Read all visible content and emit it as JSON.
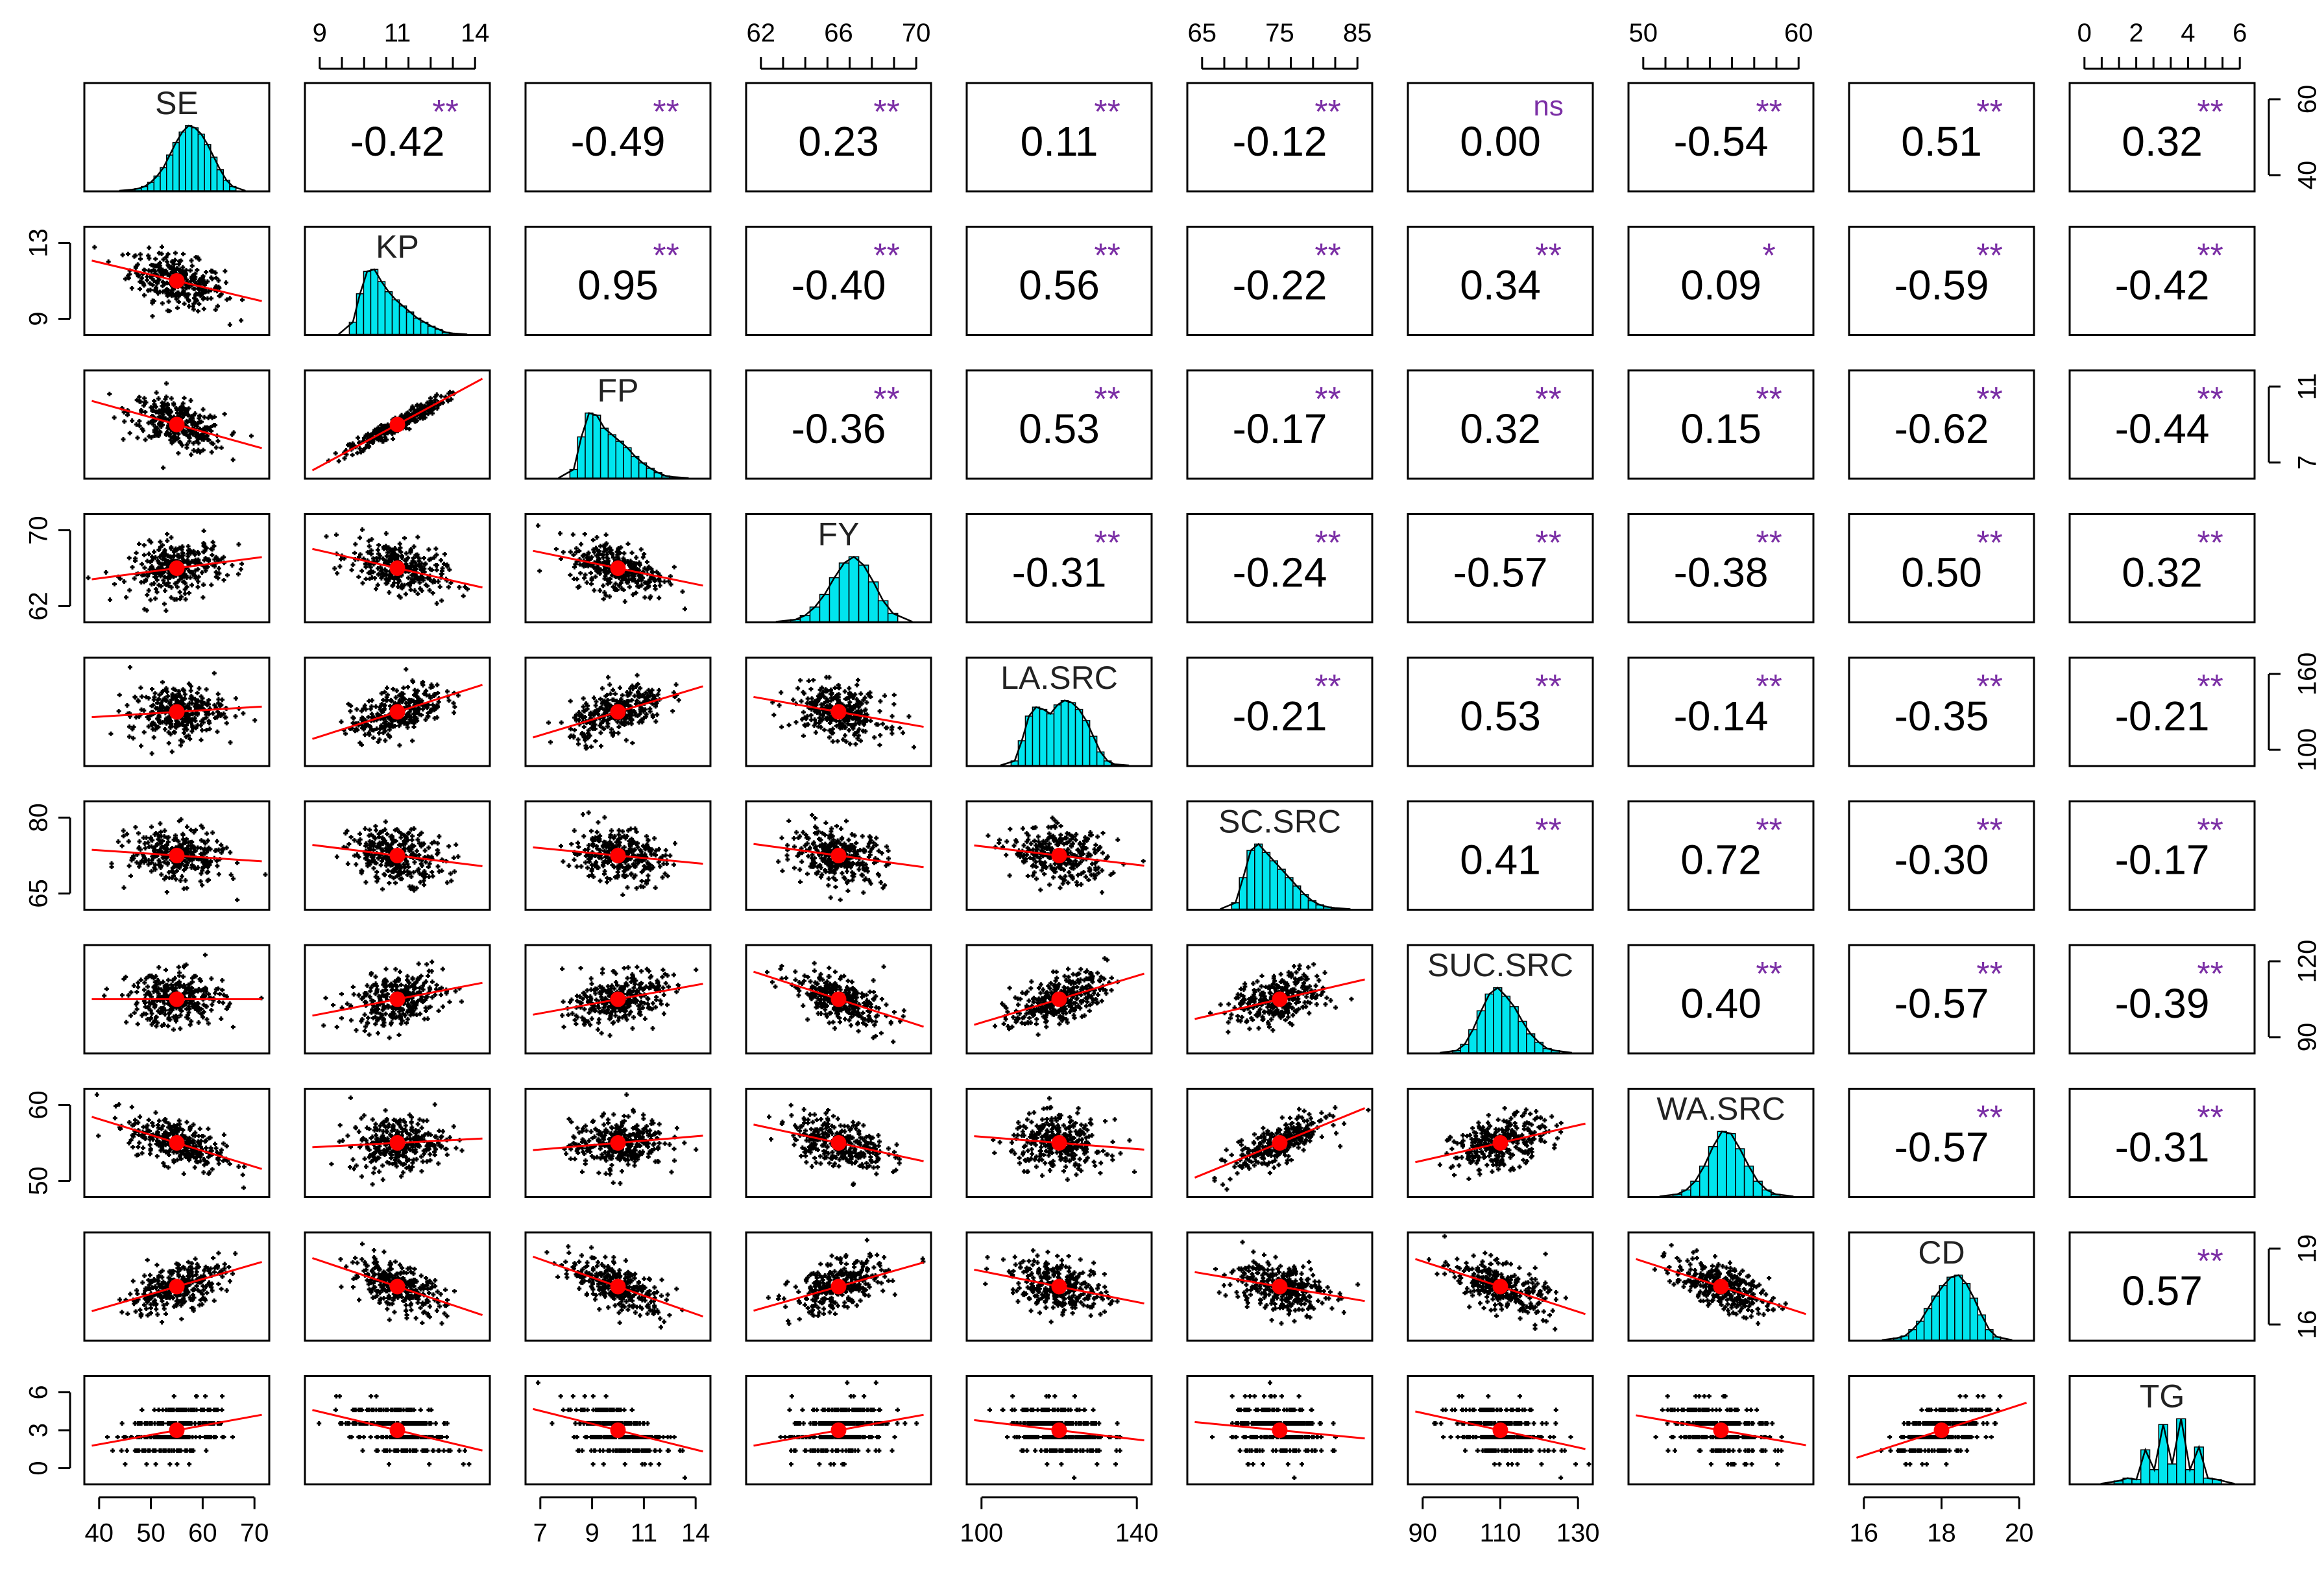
{
  "chart_data": {
    "type": "scatter",
    "title": "",
    "variables": [
      {
        "name": "SE",
        "range": [
          40,
          72
        ],
        "ticks": [
          40,
          50,
          60,
          70
        ]
      },
      {
        "name": "KP",
        "range": [
          8.3,
          16
        ],
        "ticks": [
          9,
          11,
          13,
          14
        ]
      },
      {
        "name": "FP",
        "range": [
          6.8,
          14.2
        ],
        "ticks": [
          7,
          9,
          11,
          14
        ]
      },
      {
        "name": "FY",
        "range": [
          60,
          74
        ],
        "ticks": [
          62,
          66,
          70
        ]
      },
      {
        "name": "LA.SRC",
        "range": [
          76,
          172
        ],
        "ticks": [
          100,
          140,
          160
        ]
      },
      {
        "name": "SC.SRC",
        "range": [
          58,
          88
        ],
        "ticks": [
          65,
          75,
          80,
          85
        ]
      },
      {
        "name": "SUC.SRC",
        "range": [
          82,
          130
        ],
        "ticks": [
          90,
          110,
          120,
          130
        ]
      },
      {
        "name": "WA.SRC",
        "range": [
          42,
          66
        ],
        "ticks": [
          50,
          60
        ]
      },
      {
        "name": "CD",
        "range": [
          15.7,
          20.6
        ],
        "ticks": [
          16,
          18,
          19,
          20
        ]
      },
      {
        "name": "TG",
        "range": [
          -0.2,
          7.2
        ],
        "ticks": [
          0,
          2,
          3,
          4,
          6
        ]
      }
    ],
    "top_axis": [
      {
        "col": 1,
        "labels": [
          "9",
          "11",
          "14"
        ]
      },
      {
        "col": 3,
        "labels": [
          "62",
          "66",
          "70"
        ]
      },
      {
        "col": 5,
        "labels": [
          "65",
          "75",
          "85"
        ]
      },
      {
        "col": 7,
        "labels": [
          "50",
          "60"
        ]
      },
      {
        "col": 9,
        "labels": [
          "0",
          "2",
          "4",
          "6"
        ]
      }
    ],
    "bottom_axis": [
      {
        "col": 0,
        "labels": [
          "40",
          "50",
          "60",
          "70"
        ]
      },
      {
        "col": 2,
        "labels": [
          "7",
          "9",
          "11",
          "14"
        ]
      },
      {
        "col": 4,
        "labels": [
          "100",
          "140"
        ]
      },
      {
        "col": 6,
        "labels": [
          "90",
          "110",
          "130"
        ]
      },
      {
        "col": 8,
        "labels": [
          "16",
          "18",
          "20"
        ]
      }
    ],
    "left_axis": [
      {
        "row": 1,
        "labels": [
          "9",
          "13"
        ]
      },
      {
        "row": 3,
        "labels": [
          "62",
          "70"
        ]
      },
      {
        "row": 5,
        "labels": [
          "65",
          "80"
        ]
      },
      {
        "row": 7,
        "labels": [
          "50",
          "60"
        ]
      },
      {
        "row": 9,
        "labels": [
          "0",
          "3",
          "6"
        ]
      }
    ],
    "right_axis": [
      {
        "row": 0,
        "labels": [
          "40",
          "60"
        ]
      },
      {
        "row": 2,
        "labels": [
          "7",
          "11"
        ]
      },
      {
        "row": 4,
        "labels": [
          "100",
          "160"
        ]
      },
      {
        "row": 6,
        "labels": [
          "90",
          "120"
        ]
      },
      {
        "row": 8,
        "labels": [
          "16",
          "19"
        ]
      }
    ],
    "correlations": [
      {
        "row": 0,
        "col": 1,
        "r": "-0.42",
        "sig": "**"
      },
      {
        "row": 0,
        "col": 2,
        "r": "-0.49",
        "sig": "**"
      },
      {
        "row": 0,
        "col": 3,
        "r": "0.23",
        "sig": "**"
      },
      {
        "row": 0,
        "col": 4,
        "r": "0.11",
        "sig": "**"
      },
      {
        "row": 0,
        "col": 5,
        "r": "-0.12",
        "sig": "**"
      },
      {
        "row": 0,
        "col": 6,
        "r": "0.00",
        "sig": "ns"
      },
      {
        "row": 0,
        "col": 7,
        "r": "-0.54",
        "sig": "**"
      },
      {
        "row": 0,
        "col": 8,
        "r": "0.51",
        "sig": "**"
      },
      {
        "row": 0,
        "col": 9,
        "r": "0.32",
        "sig": "**"
      },
      {
        "row": 1,
        "col": 2,
        "r": "0.95",
        "sig": "**"
      },
      {
        "row": 1,
        "col": 3,
        "r": "-0.40",
        "sig": "**"
      },
      {
        "row": 1,
        "col": 4,
        "r": "0.56",
        "sig": "**"
      },
      {
        "row": 1,
        "col": 5,
        "r": "-0.22",
        "sig": "**"
      },
      {
        "row": 1,
        "col": 6,
        "r": "0.34",
        "sig": "**"
      },
      {
        "row": 1,
        "col": 7,
        "r": "0.09",
        "sig": "*"
      },
      {
        "row": 1,
        "col": 8,
        "r": "-0.59",
        "sig": "**"
      },
      {
        "row": 1,
        "col": 9,
        "r": "-0.42",
        "sig": "**"
      },
      {
        "row": 2,
        "col": 3,
        "r": "-0.36",
        "sig": "**"
      },
      {
        "row": 2,
        "col": 4,
        "r": "0.53",
        "sig": "**"
      },
      {
        "row": 2,
        "col": 5,
        "r": "-0.17",
        "sig": "**"
      },
      {
        "row": 2,
        "col": 6,
        "r": "0.32",
        "sig": "**"
      },
      {
        "row": 2,
        "col": 7,
        "r": "0.15",
        "sig": "**"
      },
      {
        "row": 2,
        "col": 8,
        "r": "-0.62",
        "sig": "**"
      },
      {
        "row": 2,
        "col": 9,
        "r": "-0.44",
        "sig": "**"
      },
      {
        "row": 3,
        "col": 4,
        "r": "-0.31",
        "sig": "**"
      },
      {
        "row": 3,
        "col": 5,
        "r": "-0.24",
        "sig": "**"
      },
      {
        "row": 3,
        "col": 6,
        "r": "-0.57",
        "sig": "**"
      },
      {
        "row": 3,
        "col": 7,
        "r": "-0.38",
        "sig": "**"
      },
      {
        "row": 3,
        "col": 8,
        "r": "0.50",
        "sig": "**"
      },
      {
        "row": 3,
        "col": 9,
        "r": "0.32",
        "sig": "**"
      },
      {
        "row": 4,
        "col": 5,
        "r": "-0.21",
        "sig": "**"
      },
      {
        "row": 4,
        "col": 6,
        "r": "0.53",
        "sig": "**"
      },
      {
        "row": 4,
        "col": 7,
        "r": "-0.14",
        "sig": "**"
      },
      {
        "row": 4,
        "col": 8,
        "r": "-0.35",
        "sig": "**"
      },
      {
        "row": 4,
        "col": 9,
        "r": "-0.21",
        "sig": "**"
      },
      {
        "row": 5,
        "col": 6,
        "r": "0.41",
        "sig": "**"
      },
      {
        "row": 5,
        "col": 7,
        "r": "0.72",
        "sig": "**"
      },
      {
        "row": 5,
        "col": 8,
        "r": "-0.30",
        "sig": "**"
      },
      {
        "row": 5,
        "col": 9,
        "r": "-0.17",
        "sig": "**"
      },
      {
        "row": 6,
        "col": 7,
        "r": "0.40",
        "sig": "**"
      },
      {
        "row": 6,
        "col": 8,
        "r": "-0.57",
        "sig": "**"
      },
      {
        "row": 6,
        "col": 9,
        "r": "-0.39",
        "sig": "**"
      },
      {
        "row": 7,
        "col": 8,
        "r": "-0.57",
        "sig": "**"
      },
      {
        "row": 7,
        "col": 9,
        "r": "-0.31",
        "sig": "**"
      },
      {
        "row": 8,
        "col": 9,
        "r": "0.57",
        "sig": "**"
      }
    ],
    "histograms": [
      {
        "var": "SE",
        "counts": [
          1,
          2,
          4,
          8,
          14,
          22,
          34,
          46,
          56,
          62,
          60,
          54,
          44,
          32,
          20,
          10,
          4
        ]
      },
      {
        "var": "KP",
        "counts": [
          12,
          40,
          62,
          64,
          52,
          42,
          34,
          28,
          22,
          16,
          12,
          8,
          5,
          2,
          1
        ]
      },
      {
        "var": "FP",
        "counts": [
          8,
          38,
          60,
          58,
          46,
          40,
          34,
          28,
          20,
          14,
          9,
          5,
          2,
          1
        ]
      },
      {
        "var": "FY",
        "counts": [
          2,
          6,
          14,
          26,
          42,
          56,
          62,
          54,
          38,
          20,
          8
        ]
      },
      {
        "var": "LA.SRC",
        "counts": [
          4,
          22,
          44,
          52,
          50,
          46,
          54,
          58,
          56,
          50,
          40,
          26,
          12,
          4,
          1
        ]
      },
      {
        "var": "SC.SRC",
        "counts": [
          6,
          30,
          56,
          62,
          54,
          46,
          38,
          30,
          22,
          14,
          8,
          4,
          2,
          1
        ]
      },
      {
        "var": "SUC.SRC",
        "counts": [
          2,
          8,
          22,
          40,
          56,
          62,
          54,
          44,
          30,
          18,
          10,
          4,
          2
        ]
      },
      {
        "var": "WA.SRC",
        "counts": [
          2,
          6,
          14,
          28,
          46,
          60,
          58,
          44,
          28,
          14,
          6,
          2
        ]
      },
      {
        "var": "CD",
        "counts": [
          2,
          4,
          10,
          18,
          30,
          42,
          52,
          60,
          62,
          54,
          40,
          24,
          10,
          3
        ]
      },
      {
        "var": "TG",
        "counts": [
          2,
          4,
          3,
          24,
          10,
          42,
          14,
          46,
          10,
          26,
          4,
          3
        ]
      }
    ]
  }
}
